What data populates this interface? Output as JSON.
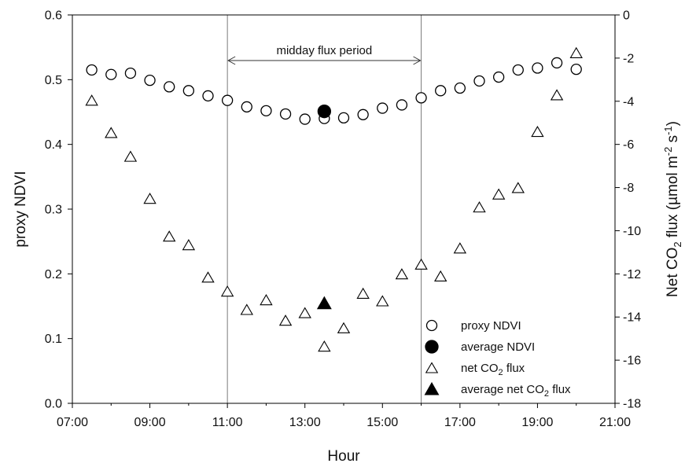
{
  "chart_data": {
    "type": "scatter",
    "xlabel": "Hour",
    "ylabel_left": "proxy NDVI",
    "ylabel_right": {
      "prefix": "Net CO",
      "sub": "2",
      "mid": " flux (µmol m",
      "sup1": "-2",
      "mid2": " s",
      "sup2": "-1",
      "suffix": ")"
    },
    "x_ticks": [
      "07:00",
      "09:00",
      "11:00",
      "13:00",
      "15:00",
      "17:00",
      "19:00",
      "21:00"
    ],
    "xlim": [
      7,
      21
    ],
    "ylim_left": [
      0.0,
      0.6
    ],
    "y_ticks_left": [
      "0.0",
      "0.1",
      "0.2",
      "0.3",
      "0.4",
      "0.5",
      "0.6"
    ],
    "ylim_right": [
      -18,
      0
    ],
    "y_ticks_right": [
      "-18",
      "-16",
      "-14",
      "-12",
      "-10",
      "-8",
      "-6",
      "-4",
      "-2",
      "0"
    ],
    "annotation": {
      "text": "midday flux period",
      "x_start": 11,
      "x_end": 16
    },
    "legend_position": "bottom-right",
    "legend": [
      {
        "label": "proxy NDVI",
        "marker": "open-circle"
      },
      {
        "label": "average NDVI",
        "marker": "filled-circle"
      },
      {
        "label_prefix": "net CO",
        "label_sub": "2",
        "label_suffix": " flux",
        "marker": "open-triangle"
      },
      {
        "label_prefix": "average net CO",
        "label_sub": "2",
        "label_suffix": " flux",
        "marker": "filled-triangle"
      }
    ],
    "series": [
      {
        "name": "proxy NDVI",
        "axis": "left",
        "marker": "open-circle",
        "x": [
          7.5,
          8.0,
          8.5,
          9.0,
          9.5,
          10.0,
          10.5,
          11.0,
          11.5,
          12.0,
          12.5,
          13.0,
          13.5,
          14.0,
          14.5,
          15.0,
          15.5,
          16.0,
          16.5,
          17.0,
          17.5,
          18.0,
          18.5,
          19.0,
          19.5,
          20.0
        ],
        "y": [
          0.515,
          0.508,
          0.51,
          0.499,
          0.489,
          0.483,
          0.475,
          0.468,
          0.458,
          0.452,
          0.447,
          0.439,
          0.44,
          0.441,
          0.446,
          0.456,
          0.461,
          0.472,
          0.483,
          0.487,
          0.498,
          0.504,
          0.515,
          0.518,
          0.526,
          0.516
        ]
      },
      {
        "name": "average NDVI",
        "axis": "left",
        "marker": "filled-circle",
        "x": [
          13.5
        ],
        "y": [
          0.451
        ]
      },
      {
        "name": "net CO2 flux",
        "axis": "right",
        "marker": "open-triangle",
        "x": [
          7.5,
          8.0,
          8.5,
          9.0,
          9.5,
          10.0,
          10.5,
          11.0,
          11.5,
          12.0,
          12.5,
          13.0,
          13.5,
          14.0,
          14.5,
          15.0,
          15.5,
          16.0,
          16.5,
          17.0,
          17.5,
          18.0,
          18.5,
          19.0,
          19.5,
          20.0
        ],
        "y": [
          -4.0,
          -5.5,
          -6.6,
          -8.55,
          -10.3,
          -10.7,
          -12.2,
          -12.85,
          -13.7,
          -13.25,
          -14.2,
          -13.85,
          -15.4,
          -14.55,
          -12.95,
          -13.3,
          -12.05,
          -11.6,
          -12.15,
          -10.85,
          -8.95,
          -8.35,
          -8.05,
          -5.45,
          -3.75,
          -1.8
        ]
      },
      {
        "name": "average net CO2 flux",
        "axis": "right",
        "marker": "filled-triangle",
        "x": [
          13.5
        ],
        "y": [
          -13.4
        ]
      }
    ]
  }
}
